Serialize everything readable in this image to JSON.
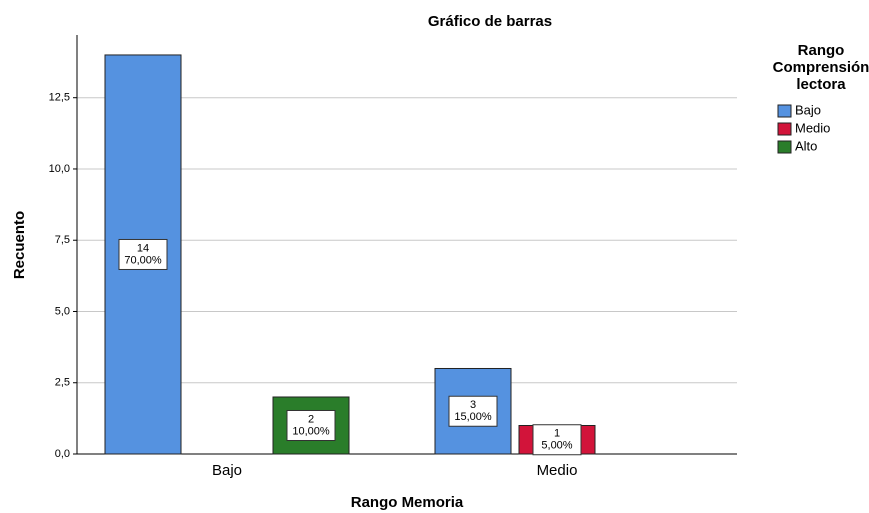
{
  "chart_data": {
    "type": "bar",
    "title": "Gráfico de barras",
    "x_label": "Rango Memoria",
    "y_label": "Recuento",
    "legend_title": [
      "Rango",
      "Comprensión",
      "lectora"
    ],
    "legend_position": "right",
    "categories": [
      "Bajo",
      "Medio"
    ],
    "series": [
      {
        "name": "Bajo",
        "color": "#5592e0",
        "values": [
          14,
          3
        ],
        "percentages": [
          70,
          15
        ],
        "percentage_labels": [
          "70,00%",
          "15,00%"
        ]
      },
      {
        "name": "Medio",
        "color": "#d2143a",
        "values": [
          null,
          1
        ],
        "percentages": [
          null,
          5
        ],
        "percentage_labels": [
          null,
          "5,00%"
        ]
      },
      {
        "name": "Alto",
        "color": "#2a7d2a",
        "values": [
          2,
          null
        ],
        "percentages": [
          10,
          null
        ],
        "percentage_labels": [
          "10,00%",
          null
        ]
      }
    ],
    "ylim": [
      0,
      14.7
    ],
    "yticks": [
      {
        "value": 0,
        "label": "0,0"
      },
      {
        "value": 2.5,
        "label": "2,5"
      },
      {
        "value": 5,
        "label": "5,0"
      },
      {
        "value": 7.5,
        "label": "7,5"
      },
      {
        "value": 10,
        "label": "10,0"
      },
      {
        "value": 12.5,
        "label": "12,5"
      }
    ],
    "grid": true
  }
}
